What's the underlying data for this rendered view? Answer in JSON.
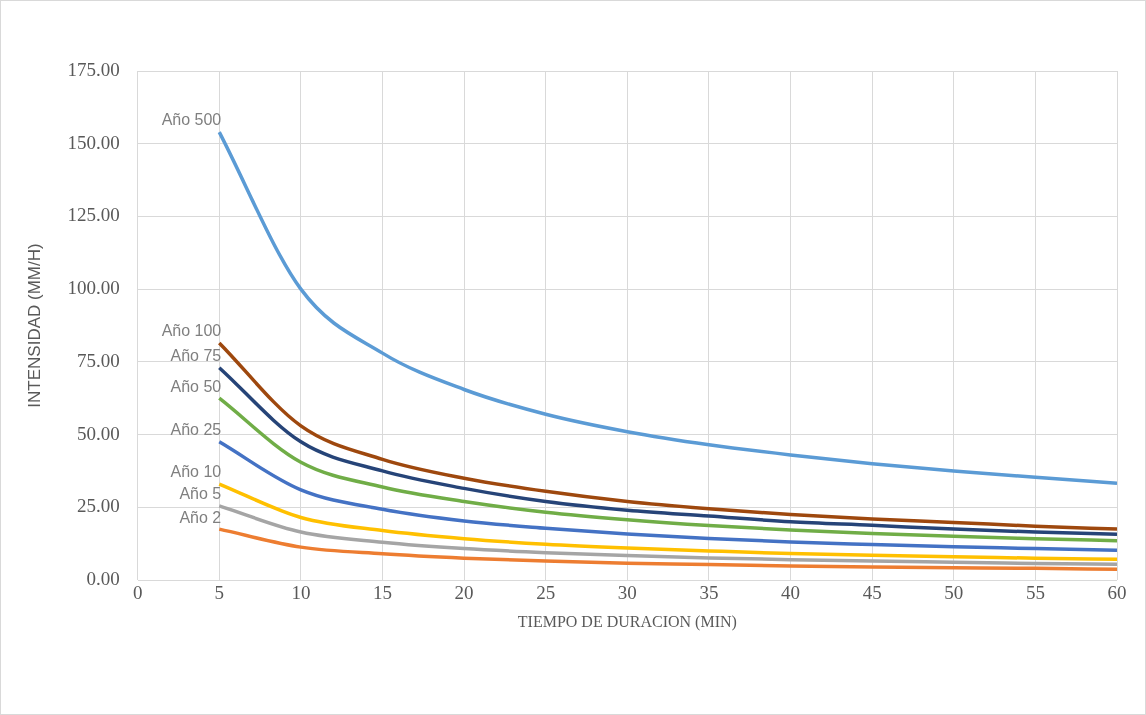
{
  "chart_data": {
    "type": "line",
    "xlabel": "TIEMPO DE DURACION (MIN)",
    "ylabel": "INTENSIDAD (MM/H)",
    "x": [
      5,
      10,
      15,
      20,
      25,
      30,
      35,
      40,
      45,
      50,
      55,
      60
    ],
    "xlim": [
      0,
      60
    ],
    "xticks": [
      0,
      5,
      10,
      15,
      20,
      25,
      30,
      35,
      40,
      45,
      50,
      55,
      60
    ],
    "ylim": [
      0,
      175
    ],
    "yticks": [
      {
        "value": 0,
        "label": "0.00"
      },
      {
        "value": 25,
        "label": "25.00"
      },
      {
        "value": 50,
        "label": "50.00"
      },
      {
        "value": 75,
        "label": "75.00"
      },
      {
        "value": 100,
        "label": "100.00"
      },
      {
        "value": 125,
        "label": "125.00"
      },
      {
        "value": 150,
        "label": "150.00"
      },
      {
        "value": 175,
        "label": "175.00"
      }
    ],
    "grid": true,
    "legend": false,
    "marker": "none",
    "line_style": "solid",
    "series": [
      {
        "name": "Año 500",
        "color": "#5b9bd5",
        "values": [
          154,
          100,
          78,
          65.5,
          57,
          51,
          46.5,
          43,
          40,
          37.5,
          35.3,
          33.3
        ]
      },
      {
        "name": "Año 100",
        "color": "#9e480e",
        "values": [
          81.5,
          53,
          41.5,
          35,
          30.5,
          27,
          24.5,
          22.5,
          21,
          19.8,
          18.5,
          17.5
        ]
      },
      {
        "name": "Año 75",
        "color": "#264478",
        "values": [
          73,
          47.5,
          37.5,
          31.5,
          27,
          24,
          22,
          20,
          18.8,
          17.5,
          16.5,
          15.7
        ]
      },
      {
        "name": "Año 50",
        "color": "#70ad47",
        "values": [
          62.5,
          40.5,
          32,
          27,
          23.3,
          20.7,
          18.7,
          17.2,
          16,
          15,
          14.2,
          13.5
        ]
      },
      {
        "name": "Año 25",
        "color": "#4472c4",
        "values": [
          47.5,
          31,
          24.3,
          20.3,
          17.8,
          15.8,
          14.3,
          13.1,
          12.2,
          11.4,
          10.8,
          10.2
        ]
      },
      {
        "name": "Año 10",
        "color": "#ffc000",
        "values": [
          33,
          21.5,
          17,
          14.2,
          12.3,
          11,
          10,
          9.1,
          8.5,
          8,
          7.5,
          7.1
        ]
      },
      {
        "name": "Año 5",
        "color": "#a5a5a5",
        "values": [
          25.5,
          16.5,
          13,
          10.8,
          9.4,
          8.4,
          7.6,
          7,
          6.5,
          6.1,
          5.7,
          5.4
        ]
      },
      {
        "name": "Año 2",
        "color": "#ed7d31",
        "values": [
          17.5,
          11.3,
          9,
          7.5,
          6.5,
          5.8,
          5.3,
          4.8,
          4.5,
          4.2,
          4,
          3.7
        ]
      }
    ]
  }
}
